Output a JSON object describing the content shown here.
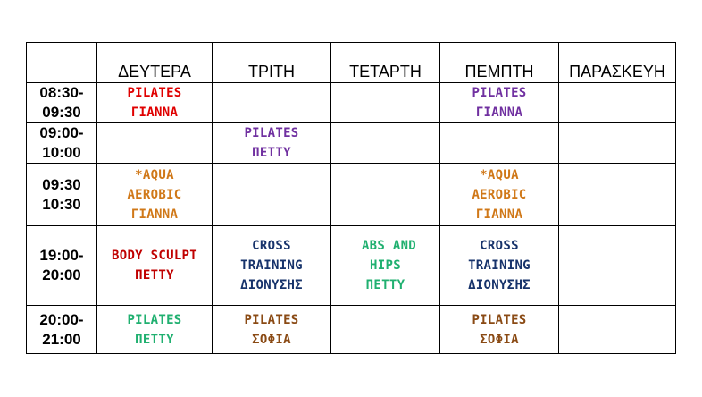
{
  "colors": {
    "red": "#e00000",
    "purple": "#7030a0",
    "orange": "#d07818",
    "darkred": "#c00000",
    "navy": "#17336b",
    "green": "#20b070",
    "brown": "#8a4a14"
  },
  "header": {
    "days": [
      "ΔΕΥΤΕΡΑ",
      "ΤΡΙΤΗ",
      "ΤΕΤΑΡΤΗ",
      "ΠΕΜΠΤΗ",
      "ΠΑΡΑΣΚΕΥΗ"
    ]
  },
  "rows": [
    {
      "time": [
        "08:30-",
        "09:30"
      ],
      "mon": [
        "PILATES",
        "ΓΙΑΝΝΑ"
      ],
      "thu": [
        "PILATES",
        "ΓΙΑΝΝΑ"
      ]
    },
    {
      "time": [
        "09:00-",
        "10:00"
      ],
      "tue": [
        "PILATES",
        "ΠΕΤΤΥ"
      ]
    },
    {
      "time": [
        "09:30",
        "10:30"
      ],
      "mon": [
        "*AQUA",
        "AEROBIC",
        "ΓΙΑΝΝΑ"
      ],
      "thu": [
        "*AQUA",
        "AEROBIC",
        "ΓΙΑΝΝΑ"
      ]
    },
    {
      "time": [
        "19:00-",
        "20:00"
      ],
      "mon": [
        "BODY SCULPT",
        "ΠΕΤΤΥ"
      ],
      "tue": [
        "CROSS",
        "TRAINING",
        "ΔΙΟΝΥΣΗΣ"
      ],
      "wed": [
        "ABS AND",
        "HIPS",
        "ΠΕΤΤΥ"
      ],
      "thu": [
        "CROSS",
        "TRAINING",
        "ΔΙΟΝΥΣΗΣ"
      ]
    },
    {
      "time": [
        "20:00-",
        "21:00"
      ],
      "mon": [
        "PILATES",
        "ΠΕΤΤΥ"
      ],
      "tue": [
        "PILATES",
        "ΣΟΦΙΑ"
      ],
      "thu": [
        "PILATES",
        "ΣΟΦΙΑ"
      ]
    }
  ]
}
